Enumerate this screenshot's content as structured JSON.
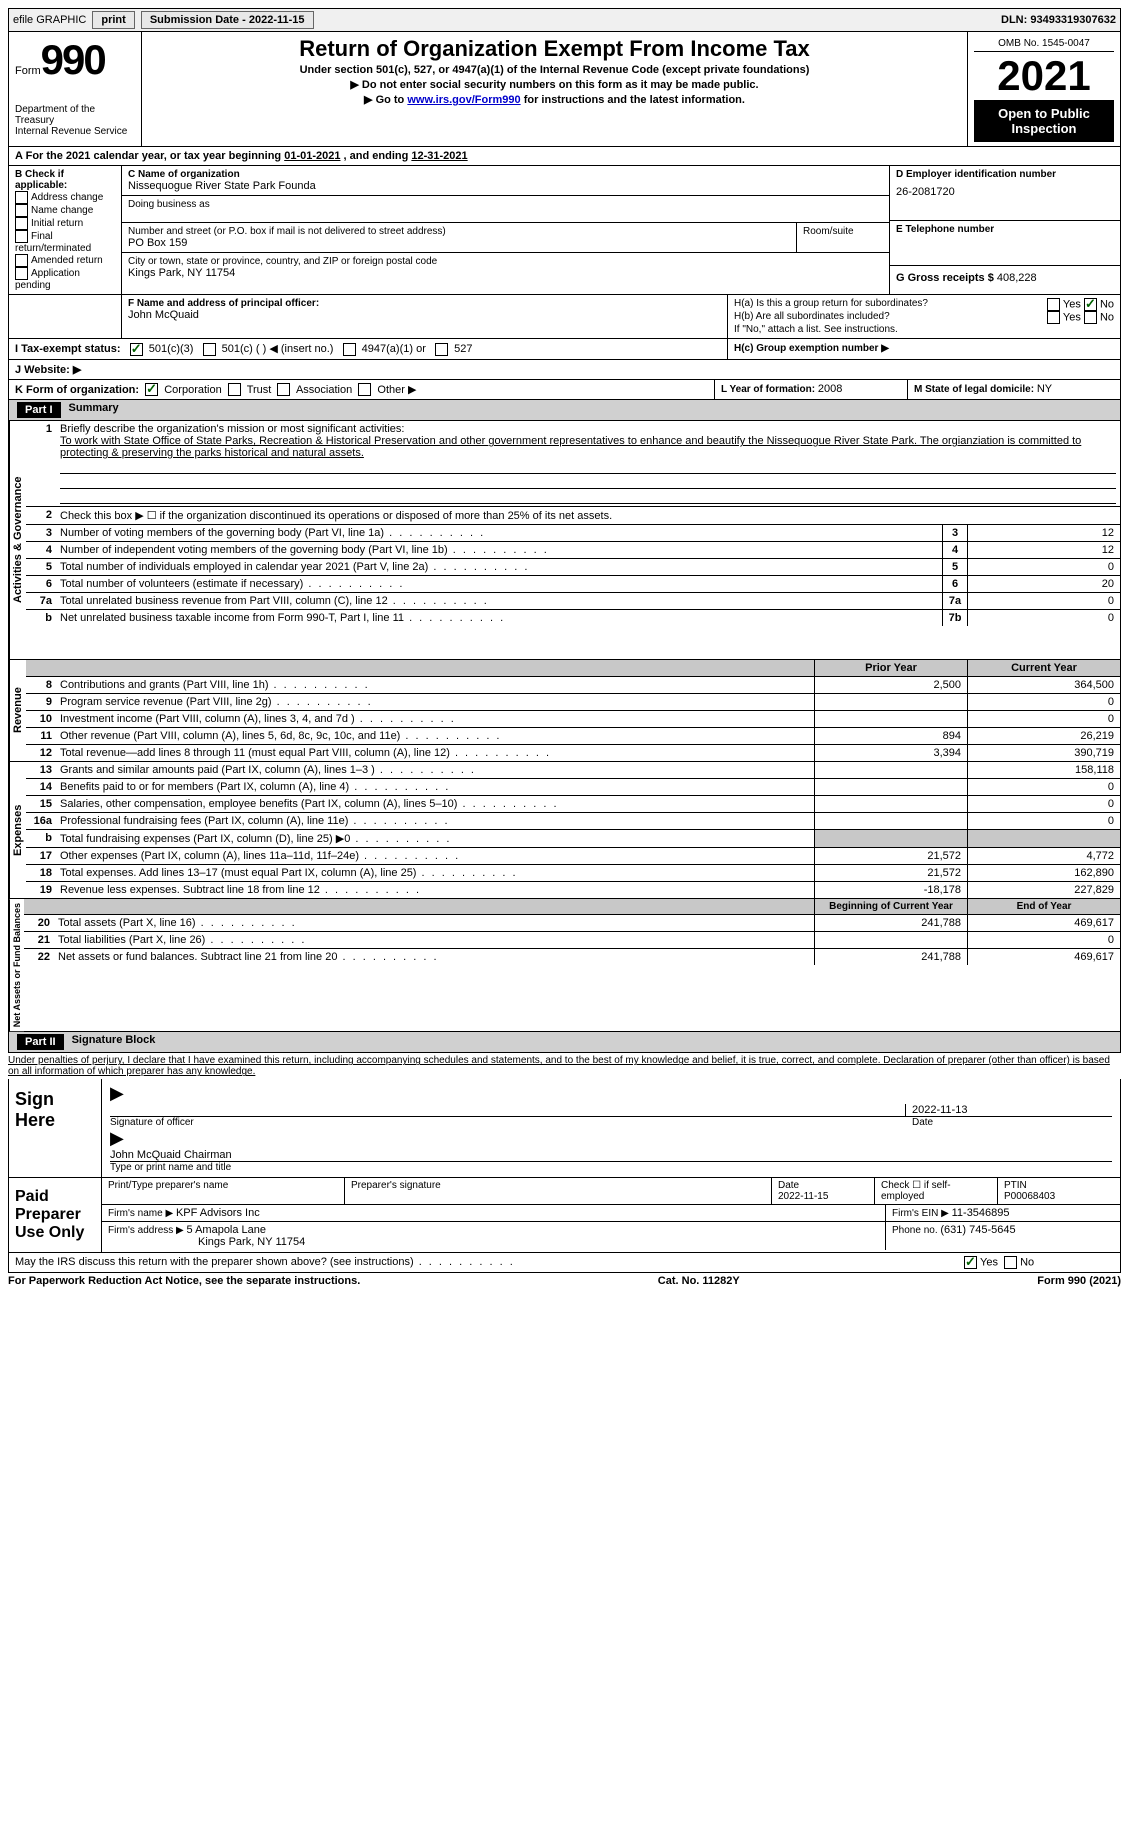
{
  "topbar": {
    "efile": "efile GRAPHIC",
    "print": "print",
    "subdate_label": "Submission Date - ",
    "subdate": "2022-11-15",
    "dln_label": "DLN: ",
    "dln": "93493319307632"
  },
  "header": {
    "form_label": "Form",
    "form_num": "990",
    "dept": "Department of the Treasury",
    "irs": "Internal Revenue Service",
    "title": "Return of Organization Exempt From Income Tax",
    "subtitle": "Under section 501(c), 527, or 4947(a)(1) of the Internal Revenue Code (except private foundations)",
    "warn1": "▶ Do not enter social security numbers on this form as it may be made public.",
    "warn2_pre": "▶ Go to ",
    "warn2_link": "www.irs.gov/Form990",
    "warn2_post": " for instructions and the latest information.",
    "omb_label": "OMB No. 1545-0047",
    "year": "2021",
    "open": "Open to Public Inspection"
  },
  "A": {
    "text": "For the 2021 calendar year, or tax year beginning ",
    "begin": "01-01-2021",
    "mid": " , and ending ",
    "end": "12-31-2021"
  },
  "B": {
    "label": "B Check if applicable:",
    "opts": [
      "Address change",
      "Name change",
      "Initial return",
      "Final return/terminated",
      "Amended return",
      "Application pending"
    ]
  },
  "C": {
    "name_label": "C Name of organization",
    "name": "Nissequogue River State Park Founda",
    "dba_label": "Doing business as",
    "addr_label": "Number and street (or P.O. box if mail is not delivered to street address)",
    "room_label": "Room/suite",
    "addr": "PO Box 159",
    "city_label": "City or town, state or province, country, and ZIP or foreign postal code",
    "city": "Kings Park, NY  11754"
  },
  "D": {
    "label": "D Employer identification number",
    "value": "26-2081720"
  },
  "E": {
    "label": "E Telephone number"
  },
  "G": {
    "label": "G Gross receipts $ ",
    "value": "408,228"
  },
  "F": {
    "label": "F Name and address of principal officer:",
    "name": "John McQuaid"
  },
  "H": {
    "a": "H(a)  Is this a group return for subordinates?",
    "b": "H(b)  Are all subordinates included?",
    "note": "If \"No,\" attach a list. See instructions.",
    "c": "H(c)  Group exemption number ▶",
    "yes": "Yes",
    "no": "No"
  },
  "I": {
    "label": "I   Tax-exempt status:",
    "opts": [
      "501(c)(3)",
      "501(c) (  ) ◀ (insert no.)",
      "4947(a)(1) or",
      "527"
    ]
  },
  "J": {
    "label": "J   Website: ▶"
  },
  "K": {
    "label": "K Form of organization:",
    "opts": [
      "Corporation",
      "Trust",
      "Association",
      "Other ▶"
    ]
  },
  "L": {
    "label": "L Year of formation: ",
    "value": "2008"
  },
  "M": {
    "label": "M State of legal domicile: ",
    "value": "NY"
  },
  "part1": {
    "bar": "Part I",
    "title": "Summary",
    "q1_label": "Briefly describe the organization's mission or most significant activities:",
    "q1_text": "To work with State Office of State Parks, Recreation & Historical Preservation and other government representatives to enhance and beautify the Nissequogue River State Park. The orgianziation is committed to protecting & preserving the parks historical and natural assets.",
    "q2": "Check this box ▶ ☐  if the organization discontinued its operations or disposed of more than 25% of its net assets.",
    "sides": [
      "Activities & Governance",
      "Revenue",
      "Expenses",
      "Net Assets or Fund Balances"
    ],
    "rows_top": [
      {
        "n": "3",
        "d": "Number of voting members of the governing body (Part VI, line 1a)",
        "b": "3",
        "v": "12"
      },
      {
        "n": "4",
        "d": "Number of independent voting members of the governing body (Part VI, line 1b)",
        "b": "4",
        "v": "12"
      },
      {
        "n": "5",
        "d": "Total number of individuals employed in calendar year 2021 (Part V, line 2a)",
        "b": "5",
        "v": "0"
      },
      {
        "n": "6",
        "d": "Total number of volunteers (estimate if necessary)",
        "b": "6",
        "v": "20"
      },
      {
        "n": "7a",
        "d": "Total unrelated business revenue from Part VIII, column (C), line 12",
        "b": "7a",
        "v": "0"
      },
      {
        "n": "b",
        "d": "Net unrelated business taxable income from Form 990-T, Part I, line 11",
        "b": "7b",
        "v": "0"
      }
    ],
    "col_prior": "Prior Year",
    "col_current": "Current Year",
    "rows_rev": [
      {
        "n": "8",
        "d": "Contributions and grants (Part VIII, line 1h)",
        "p": "2,500",
        "c": "364,500"
      },
      {
        "n": "9",
        "d": "Program service revenue (Part VIII, line 2g)",
        "p": "",
        "c": "0"
      },
      {
        "n": "10",
        "d": "Investment income (Part VIII, column (A), lines 3, 4, and 7d )",
        "p": "",
        "c": "0"
      },
      {
        "n": "11",
        "d": "Other revenue (Part VIII, column (A), lines 5, 6d, 8c, 9c, 10c, and 11e)",
        "p": "894",
        "c": "26,219"
      },
      {
        "n": "12",
        "d": "Total revenue—add lines 8 through 11 (must equal Part VIII, column (A), line 12)",
        "p": "3,394",
        "c": "390,719"
      }
    ],
    "rows_exp": [
      {
        "n": "13",
        "d": "Grants and similar amounts paid (Part IX, column (A), lines 1–3 )",
        "p": "",
        "c": "158,118"
      },
      {
        "n": "14",
        "d": "Benefits paid to or for members (Part IX, column (A), line 4)",
        "p": "",
        "c": "0"
      },
      {
        "n": "15",
        "d": "Salaries, other compensation, employee benefits (Part IX, column (A), lines 5–10)",
        "p": "",
        "c": "0"
      },
      {
        "n": "16a",
        "d": "Professional fundraising fees (Part IX, column (A), line 11e)",
        "p": "",
        "c": "0"
      },
      {
        "n": "b",
        "d": "Total fundraising expenses (Part IX, column (D), line 25) ▶0",
        "p": "GRAY",
        "c": "GRAY"
      },
      {
        "n": "17",
        "d": "Other expenses (Part IX, column (A), lines 11a–11d, 11f–24e)",
        "p": "21,572",
        "c": "4,772"
      },
      {
        "n": "18",
        "d": "Total expenses. Add lines 13–17 (must equal Part IX, column (A), line 25)",
        "p": "21,572",
        "c": "162,890"
      },
      {
        "n": "19",
        "d": "Revenue less expenses. Subtract line 18 from line 12",
        "p": "-18,178",
        "c": "227,829"
      }
    ],
    "col_begin": "Beginning of Current Year",
    "col_end": "End of Year",
    "rows_net": [
      {
        "n": "20",
        "d": "Total assets (Part X, line 16)",
        "p": "241,788",
        "c": "469,617"
      },
      {
        "n": "21",
        "d": "Total liabilities (Part X, line 26)",
        "p": "",
        "c": "0"
      },
      {
        "n": "22",
        "d": "Net assets or fund balances. Subtract line 21 from line 20",
        "p": "241,788",
        "c": "469,617"
      }
    ]
  },
  "part2": {
    "bar": "Part II",
    "title": "Signature Block",
    "decl": "Under penalties of perjury, I declare that I have examined this return, including accompanying schedules and statements, and to the best of my knowledge and belief, it is true, correct, and complete. Declaration of preparer (other than officer) is based on all information of which preparer has any knowledge.",
    "sign_here": "Sign Here",
    "sig_officer": "Signature of officer",
    "sig_date": "2022-11-13",
    "date_label": "Date",
    "officer_name": "John McQuaid  Chairman",
    "type_name": "Type or print name and title",
    "paid": "Paid Preparer Use Only",
    "prep_name_label": "Print/Type preparer's name",
    "prep_sig_label": "Preparer's signature",
    "prep_date_label": "Date",
    "prep_date": "2022-11-15",
    "check_self": "Check ☐ if self-employed",
    "ptin_label": "PTIN",
    "ptin": "P00068403",
    "firm_name_label": "Firm's name    ▶ ",
    "firm_name": "KPF Advisors Inc",
    "firm_ein_label": "Firm's EIN ▶ ",
    "firm_ein": "11-3546895",
    "firm_addr_label": "Firm's address ▶ ",
    "firm_addr1": "5 Amapola Lane",
    "firm_addr2": "Kings Park, NY  11754",
    "phone_label": "Phone no. ",
    "phone": "(631) 745-5645",
    "may_irs": "May the IRS discuss this return with the preparer shown above? (see instructions)"
  },
  "footer": {
    "left": "For Paperwork Reduction Act Notice, see the separate instructions.",
    "mid": "Cat. No. 11282Y",
    "right": "Form 990 (2021)"
  }
}
